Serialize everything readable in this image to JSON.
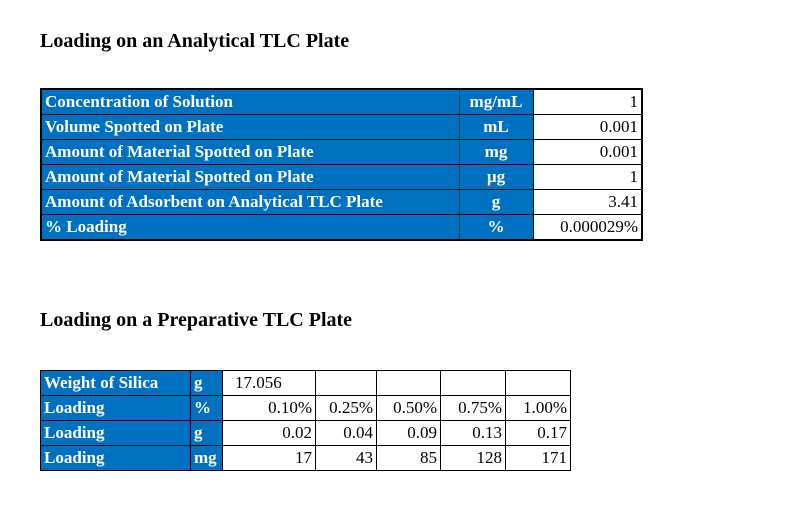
{
  "analytical": {
    "title": "Loading on an Analytical TLC Plate",
    "rows": [
      {
        "label": "Concentration of Solution",
        "unit": "mg/mL",
        "value": "1"
      },
      {
        "label": "Volume Spotted on Plate",
        "unit": "mL",
        "value": "0.001"
      },
      {
        "label": "Amount of Material Spotted on Plate",
        "unit": "mg",
        "value": "0.001"
      },
      {
        "label": "Amount of Material Spotted on Plate",
        "unit": "µg",
        "value": "1"
      },
      {
        "label": "Amount of Adsorbent on Analytical TLC Plate",
        "unit": "g",
        "value": "3.41"
      },
      {
        "label": "% Loading",
        "unit": "%",
        "value": "0.000029%"
      }
    ]
  },
  "preparative": {
    "title": "Loading on a Preparative TLC Plate",
    "rows": [
      {
        "label": "Weight of Silica",
        "unit": "g",
        "values": [
          "17.056",
          "",
          "",
          "",
          ""
        ]
      },
      {
        "label": "Loading",
        "unit": "%",
        "values": [
          "0.10%",
          "0.25%",
          "0.50%",
          "0.75%",
          "1.00%"
        ]
      },
      {
        "label": "Loading",
        "unit": "g",
        "values": [
          "0.02",
          "0.04",
          "0.09",
          "0.13",
          "0.17"
        ]
      },
      {
        "label": "Loading",
        "unit": "mg",
        "values": [
          "17",
          "43",
          "85",
          "128",
          "171"
        ]
      }
    ]
  },
  "colors": {
    "header_blue": "#0070C0"
  }
}
